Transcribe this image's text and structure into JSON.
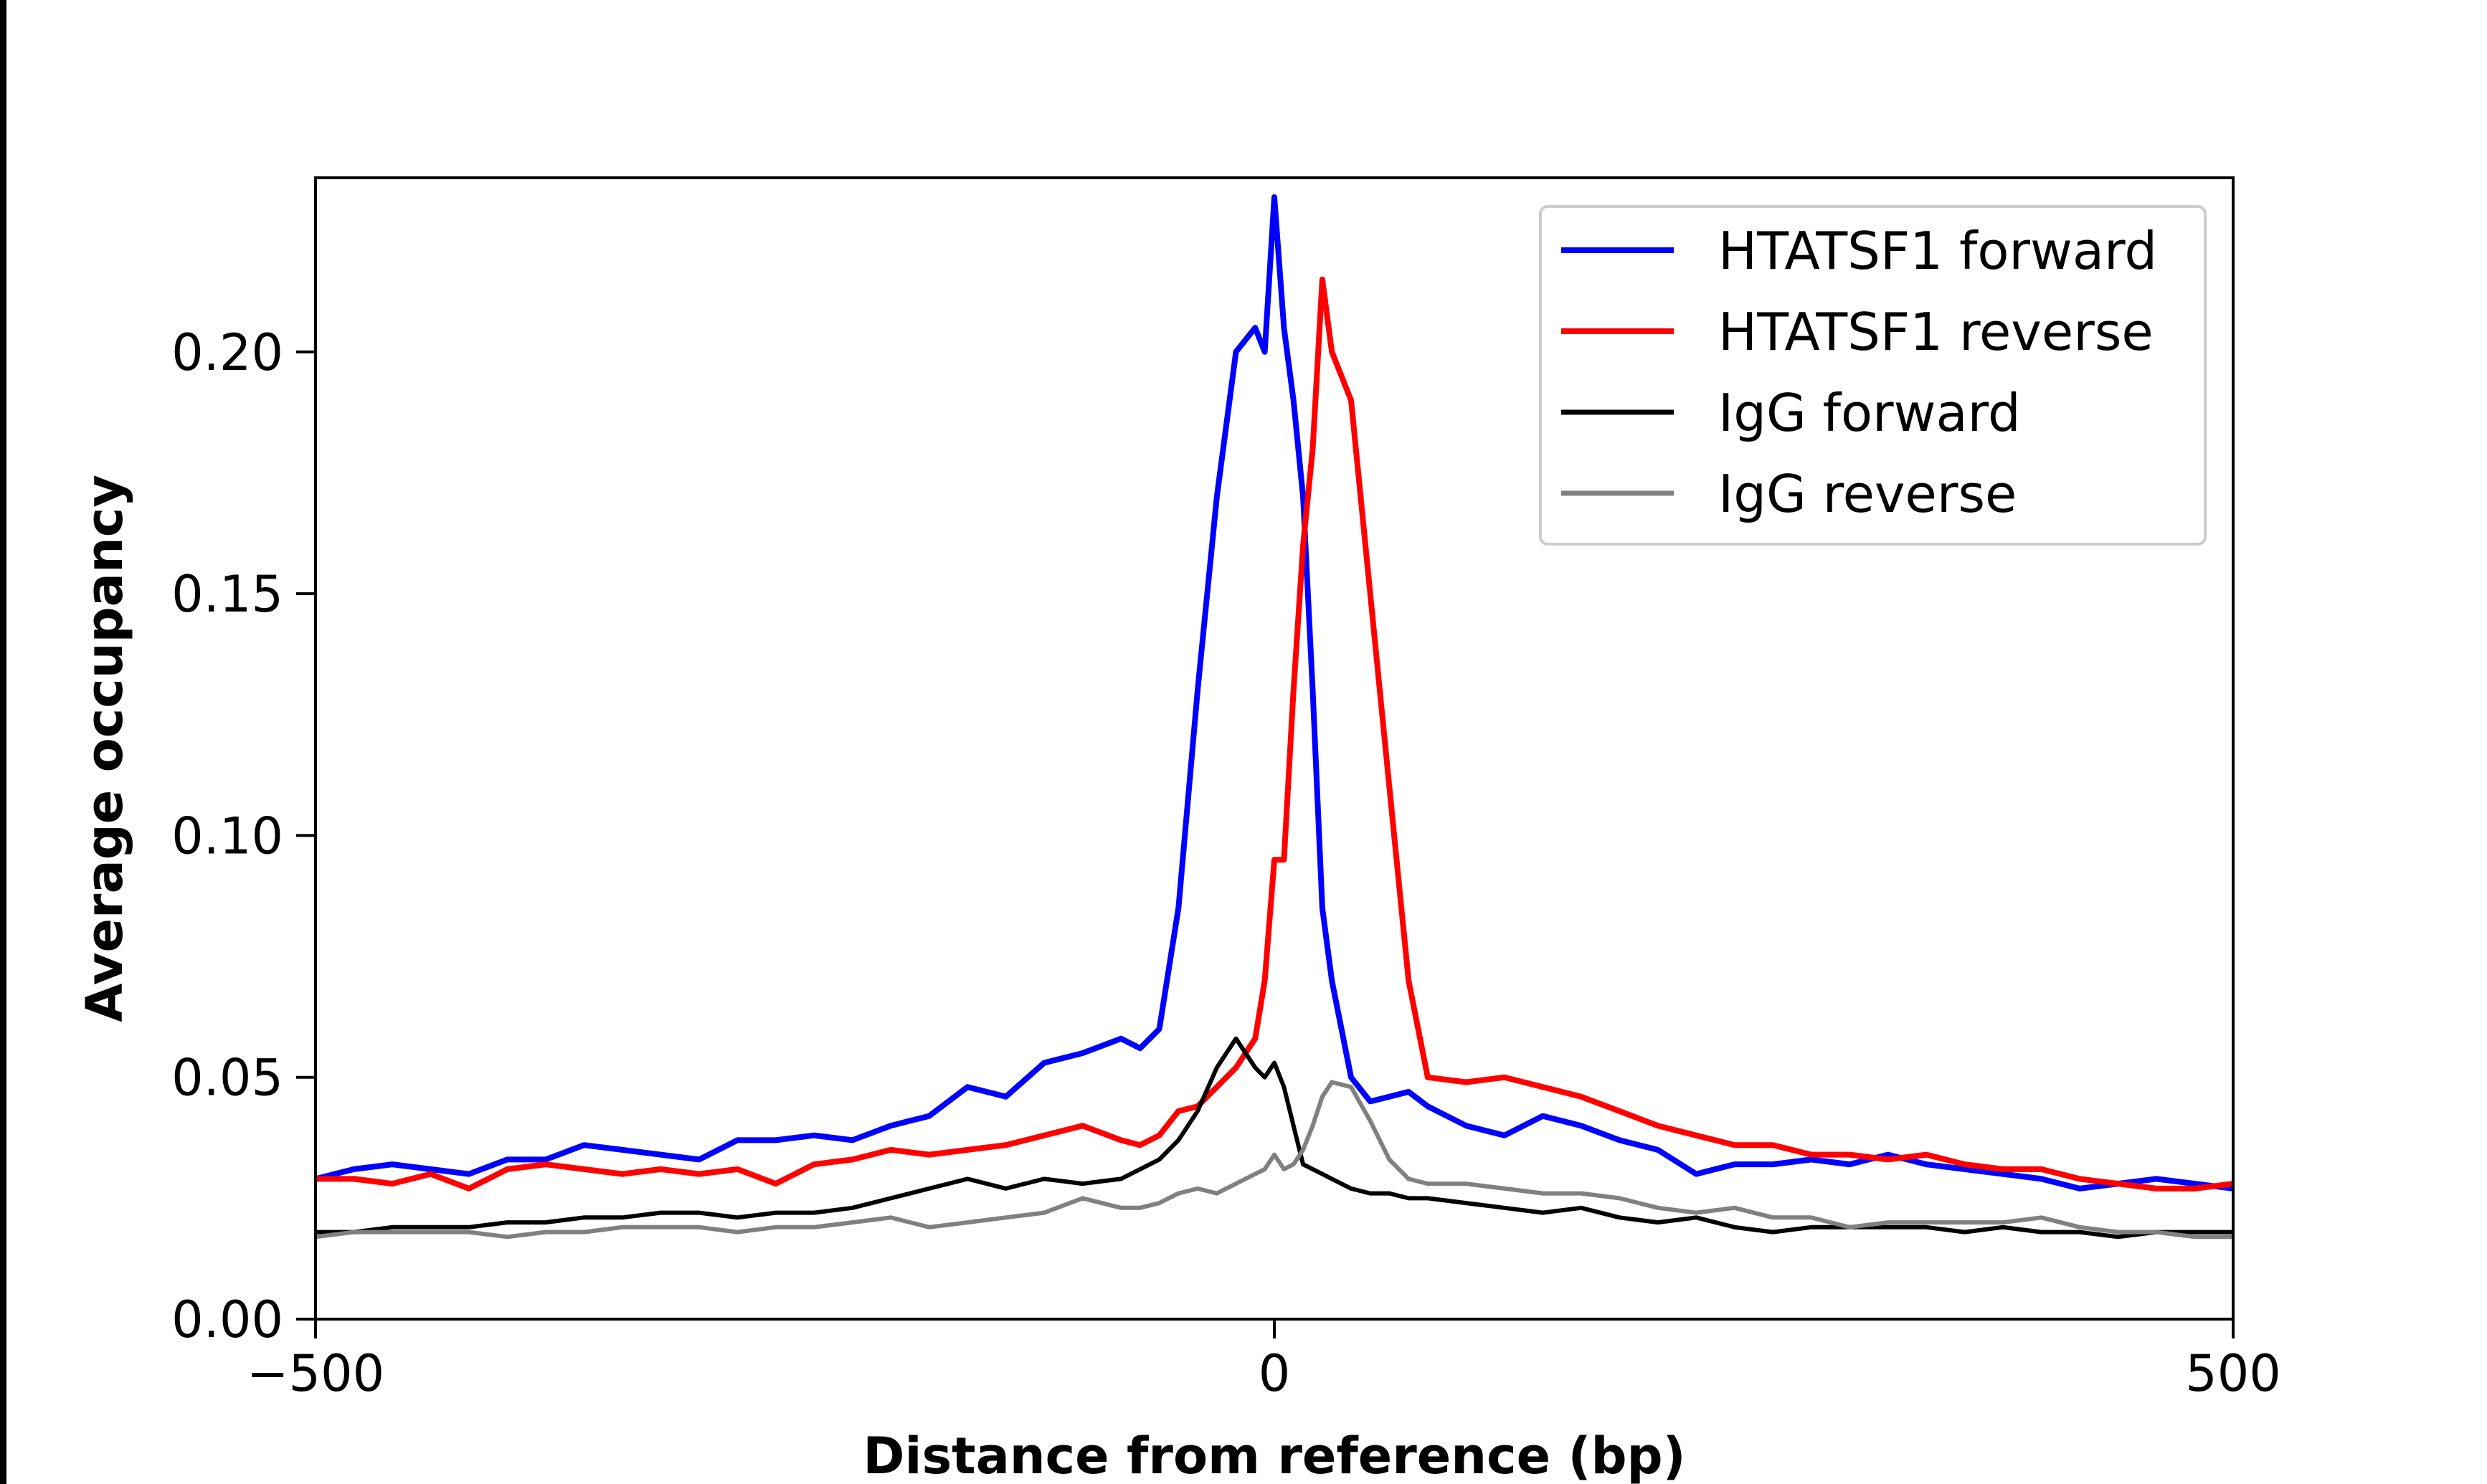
{
  "chart_data": {
    "type": "line",
    "title": "",
    "xlabel": "Distance from reference (bp)",
    "ylabel": "Average occupancy",
    "xlim": [
      -500,
      500
    ],
    "ylim": [
      0,
      0.236
    ],
    "xticks": [
      -500,
      0,
      500
    ],
    "xtick_labels": [
      "−500",
      "0",
      "500"
    ],
    "yticks": [
      0,
      0.05,
      0.1,
      0.15,
      0.2
    ],
    "ytick_labels": [
      "0.00",
      "0.05",
      "0.10",
      "0.15",
      "0.20"
    ],
    "grid": false,
    "legend_position": "top-right",
    "x": [
      -500,
      -480,
      -460,
      -440,
      -420,
      -400,
      -380,
      -360,
      -340,
      -320,
      -300,
      -280,
      -260,
      -240,
      -220,
      -200,
      -180,
      -160,
      -140,
      -120,
      -100,
      -80,
      -70,
      -60,
      -50,
      -40,
      -30,
      -20,
      -10,
      -5,
      0,
      5,
      10,
      15,
      20,
      25,
      30,
      40,
      50,
      60,
      70,
      80,
      100,
      120,
      140,
      160,
      180,
      200,
      220,
      240,
      260,
      280,
      300,
      320,
      340,
      360,
      380,
      400,
      420,
      440,
      460,
      480,
      500
    ],
    "series": [
      {
        "name": "HTATSF1 forward",
        "color": "#0000ff",
        "values": [
          0.029,
          0.031,
          0.032,
          0.031,
          0.03,
          0.033,
          0.033,
          0.036,
          0.035,
          0.034,
          0.033,
          0.037,
          0.037,
          0.038,
          0.037,
          0.04,
          0.042,
          0.048,
          0.046,
          0.053,
          0.055,
          0.058,
          0.056,
          0.06,
          0.085,
          0.13,
          0.17,
          0.2,
          0.205,
          0.2,
          0.232,
          0.205,
          0.19,
          0.17,
          0.13,
          0.085,
          0.07,
          0.05,
          0.045,
          0.046,
          0.047,
          0.044,
          0.04,
          0.038,
          0.042,
          0.04,
          0.037,
          0.035,
          0.03,
          0.032,
          0.032,
          0.033,
          0.032,
          0.034,
          0.032,
          0.031,
          0.03,
          0.029,
          0.027,
          0.028,
          0.029,
          0.028,
          0.027
        ]
      },
      {
        "name": "HTATSF1 reverse",
        "color": "#ff0000",
        "values": [
          0.029,
          0.029,
          0.028,
          0.03,
          0.027,
          0.031,
          0.032,
          0.031,
          0.03,
          0.031,
          0.03,
          0.031,
          0.028,
          0.032,
          0.033,
          0.035,
          0.034,
          0.035,
          0.036,
          0.038,
          0.04,
          0.037,
          0.036,
          0.038,
          0.043,
          0.044,
          0.048,
          0.052,
          0.058,
          0.07,
          0.095,
          0.095,
          0.13,
          0.16,
          0.18,
          0.215,
          0.2,
          0.19,
          0.15,
          0.11,
          0.07,
          0.05,
          0.049,
          0.05,
          0.048,
          0.046,
          0.043,
          0.04,
          0.038,
          0.036,
          0.036,
          0.034,
          0.034,
          0.033,
          0.034,
          0.032,
          0.031,
          0.031,
          0.029,
          0.028,
          0.027,
          0.027,
          0.028
        ]
      },
      {
        "name": "IgG forward",
        "color": "#000000",
        "values": [
          0.018,
          0.018,
          0.019,
          0.019,
          0.019,
          0.02,
          0.02,
          0.021,
          0.021,
          0.022,
          0.022,
          0.021,
          0.022,
          0.022,
          0.023,
          0.025,
          0.027,
          0.029,
          0.027,
          0.029,
          0.028,
          0.029,
          0.031,
          0.033,
          0.037,
          0.043,
          0.052,
          0.058,
          0.052,
          0.05,
          0.053,
          0.048,
          0.04,
          0.032,
          0.031,
          0.03,
          0.029,
          0.027,
          0.026,
          0.026,
          0.025,
          0.025,
          0.024,
          0.023,
          0.022,
          0.023,
          0.021,
          0.02,
          0.021,
          0.019,
          0.018,
          0.019,
          0.019,
          0.019,
          0.019,
          0.018,
          0.019,
          0.018,
          0.018,
          0.017,
          0.018,
          0.018,
          0.018
        ]
      },
      {
        "name": "IgG reverse",
        "color": "#808080",
        "values": [
          0.017,
          0.018,
          0.018,
          0.018,
          0.018,
          0.017,
          0.018,
          0.018,
          0.019,
          0.019,
          0.019,
          0.018,
          0.019,
          0.019,
          0.02,
          0.021,
          0.019,
          0.02,
          0.021,
          0.022,
          0.025,
          0.023,
          0.023,
          0.024,
          0.026,
          0.027,
          0.026,
          0.028,
          0.03,
          0.031,
          0.034,
          0.031,
          0.032,
          0.035,
          0.04,
          0.046,
          0.049,
          0.048,
          0.041,
          0.033,
          0.029,
          0.028,
          0.028,
          0.027,
          0.026,
          0.026,
          0.025,
          0.023,
          0.022,
          0.023,
          0.021,
          0.021,
          0.019,
          0.02,
          0.02,
          0.02,
          0.02,
          0.021,
          0.019,
          0.018,
          0.018,
          0.017,
          0.017
        ]
      }
    ]
  }
}
